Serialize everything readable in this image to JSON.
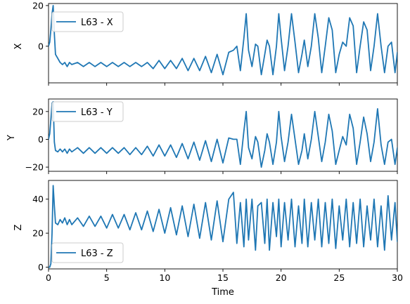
{
  "chart_data": {
    "type": "line",
    "xlabel": "Time",
    "xlim": [
      0,
      30
    ],
    "x_ticks": [
      "0",
      "5",
      "10",
      "15",
      "20",
      "25",
      "30"
    ],
    "colors": {
      "series": "#1f77b4"
    },
    "panels": [
      {
        "ylabel": "X",
        "ylim": [
          -18,
          21
        ],
        "y_ticks": [
          "20",
          "0"
        ],
        "legend": {
          "label": "L63 - X",
          "position": "upper left"
        },
        "series": [
          {
            "name": "L63 - X",
            "x": [
              0,
              0.1,
              0.2,
              0.3,
              0.4,
              0.5,
              0.6,
              0.8,
              1.0,
              1.2,
              1.4,
              1.6,
              1.8,
              2.0,
              2.5,
              3.0,
              3.5,
              4.0,
              4.5,
              5.0,
              5.5,
              6.0,
              6.5,
              7.0,
              7.5,
              8.0,
              8.5,
              9.0,
              9.5,
              10.0,
              10.5,
              11.0,
              11.5,
              12.0,
              12.5,
              13.0,
              13.5,
              14.0,
              14.5,
              15.0,
              15.5,
              15.9,
              16.2,
              16.5,
              16.8,
              17.0,
              17.2,
              17.5,
              17.8,
              18.0,
              18.3,
              18.6,
              18.8,
              19.0,
              19.3,
              19.6,
              19.8,
              20.0,
              20.3,
              20.6,
              20.9,
              21.2,
              21.5,
              21.8,
              22.0,
              22.3,
              22.6,
              22.9,
              23.2,
              23.5,
              23.8,
              24.1,
              24.4,
              24.7,
              25.0,
              25.3,
              25.6,
              25.9,
              26.2,
              26.5,
              26.8,
              27.1,
              27.4,
              27.7,
              28.0,
              28.3,
              28.6,
              28.9,
              29.2,
              29.5,
              29.8,
              30.0
            ],
            "values": [
              0,
              2,
              8,
              16,
              20,
              6,
              -4,
              -6,
              -8,
              -9,
              -8,
              -10,
              -8,
              -9,
              -8,
              -10,
              -8,
              -10,
              -8,
              -10,
              -8,
              -10,
              -8,
              -10,
              -8,
              -10,
              -8,
              -11,
              -7,
              -11,
              -7,
              -11,
              -6,
              -12,
              -6,
              -12,
              -5,
              -13,
              -4,
              -14,
              -3,
              -2,
              0,
              -12,
              4,
              16,
              -2,
              -10,
              1,
              0,
              -14,
              -4,
              3,
              0,
              -14,
              0,
              16,
              4,
              -12,
              0,
              16,
              2,
              -13,
              -4,
              3,
              -10,
              0,
              16,
              4,
              -13,
              0,
              14,
              8,
              -13,
              -4,
              2,
              0,
              14,
              10,
              -13,
              0,
              12,
              8,
              -12,
              0,
              16,
              0,
              -13,
              0,
              2,
              -13,
              -3
            ]
          }
        ]
      },
      {
        "ylabel": "Y",
        "ylim": [
          -23,
          29
        ],
        "y_ticks": [
          "20",
          "0",
          "−20"
        ],
        "legend": {
          "label": "L63 - Y",
          "position": "upper left"
        },
        "series": [
          {
            "name": "L63 - Y",
            "x": [
              0,
              0.1,
              0.2,
              0.3,
              0.4,
              0.5,
              0.6,
              0.8,
              1.0,
              1.2,
              1.4,
              1.6,
              1.8,
              2.0,
              2.5,
              3.0,
              3.5,
              4.0,
              4.5,
              5.0,
              5.5,
              6.0,
              6.5,
              7.0,
              7.5,
              8.0,
              8.5,
              9.0,
              9.5,
              10.0,
              10.5,
              11.0,
              11.5,
              12.0,
              12.5,
              13.0,
              13.5,
              14.0,
              14.5,
              15.0,
              15.5,
              15.9,
              16.2,
              16.5,
              16.8,
              17.0,
              17.2,
              17.5,
              17.8,
              18.0,
              18.3,
              18.6,
              18.8,
              19.0,
              19.3,
              19.6,
              19.8,
              20.0,
              20.3,
              20.6,
              20.9,
              21.2,
              21.5,
              21.8,
              22.0,
              22.3,
              22.6,
              22.9,
              23.2,
              23.5,
              23.8,
              24.1,
              24.4,
              24.7,
              25.0,
              25.3,
              25.6,
              25.9,
              26.2,
              26.5,
              26.8,
              27.1,
              27.4,
              27.7,
              28.0,
              28.3,
              28.6,
              28.9,
              29.2,
              29.5,
              29.8,
              30.0
            ],
            "values": [
              0,
              4,
              14,
              26,
              27,
              -2,
              -8,
              -9,
              -7,
              -9,
              -7,
              -10,
              -7,
              -9,
              -6,
              -10,
              -6,
              -10,
              -6,
              -10,
              -6,
              -10,
              -6,
              -11,
              -6,
              -11,
              -5,
              -12,
              -4,
              -12,
              -4,
              -13,
              -3,
              -14,
              -2,
              -15,
              -1,
              -16,
              0,
              -17,
              1,
              0,
              0,
              -18,
              6,
              20,
              -6,
              -14,
              2,
              -2,
              -20,
              -8,
              4,
              -2,
              -18,
              -2,
              20,
              2,
              -16,
              -2,
              18,
              0,
              -18,
              -8,
              4,
              -14,
              0,
              20,
              2,
              -16,
              -2,
              18,
              6,
              -18,
              -8,
              2,
              -4,
              18,
              8,
              -18,
              -2,
              16,
              4,
              -16,
              -2,
              22,
              -4,
              -18,
              -2,
              0,
              -18,
              -6
            ]
          }
        ]
      },
      {
        "ylabel": "Z",
        "ylim": [
          -1,
          51
        ],
        "y_ticks": [
          "40",
          "20",
          "0"
        ],
        "legend": {
          "label": "L63 - Z",
          "position": "lower left"
        },
        "series": [
          {
            "name": "L63 - Z",
            "x": [
              0,
              0.1,
              0.2,
              0.3,
              0.4,
              0.5,
              0.6,
              0.8,
              1.0,
              1.2,
              1.4,
              1.6,
              1.8,
              2.0,
              2.5,
              3.0,
              3.5,
              4.0,
              4.5,
              5.0,
              5.5,
              6.0,
              6.5,
              7.0,
              7.5,
              8.0,
              8.5,
              9.0,
              9.5,
              10.0,
              10.5,
              11.0,
              11.5,
              12.0,
              12.5,
              13.0,
              13.5,
              14.0,
              14.5,
              15.0,
              15.5,
              15.9,
              16.2,
              16.5,
              16.8,
              17.0,
              17.2,
              17.5,
              17.8,
              18.0,
              18.3,
              18.6,
              18.8,
              19.0,
              19.3,
              19.6,
              19.8,
              20.0,
              20.3,
              20.6,
              20.9,
              21.2,
              21.5,
              21.8,
              22.0,
              22.3,
              22.6,
              22.9,
              23.2,
              23.5,
              23.8,
              24.1,
              24.4,
              24.7,
              25.0,
              25.3,
              25.6,
              25.9,
              26.2,
              26.5,
              26.8,
              27.1,
              27.4,
              27.7,
              28.0,
              28.3,
              28.6,
              28.9,
              29.2,
              29.5,
              29.8,
              30.0
            ],
            "values": [
              0,
              0,
              2,
              20,
              48,
              36,
              26,
              25,
              28,
              26,
              29,
              25,
              28,
              25,
              29,
              24,
              30,
              24,
              30,
              23,
              31,
              23,
              31,
              22,
              32,
              22,
              33,
              21,
              34,
              20,
              35,
              19,
              36,
              18,
              37,
              17,
              38,
              16,
              39,
              15,
              40,
              44,
              14,
              38,
              12,
              40,
              16,
              40,
              10,
              36,
              38,
              14,
              40,
              10,
              38,
              18,
              40,
              12,
              38,
              16,
              40,
              12,
              36,
              14,
              40,
              12,
              38,
              16,
              40,
              12,
              38,
              14,
              40,
              11,
              36,
              16,
              40,
              12,
              38,
              14,
              40,
              12,
              36,
              16,
              40,
              12,
              36,
              10,
              42,
              16,
              38,
              15
            ]
          }
        ]
      }
    ]
  }
}
